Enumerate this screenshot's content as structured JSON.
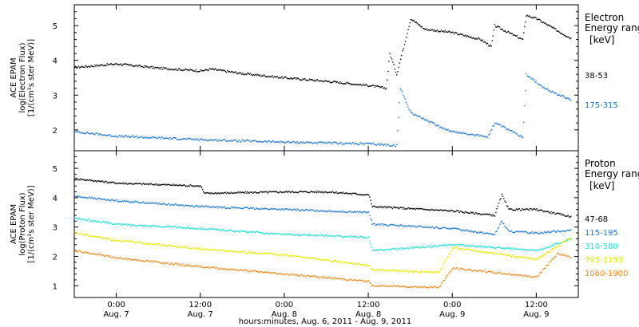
{
  "chart_data": {
    "type": "scatter",
    "xlabel": "hours:minutes, Aug.  6, 2011 - Aug.  9, 2011",
    "x_range": [
      "2011-08-06T18:00",
      "2011-08-09T18:00"
    ],
    "x_ticks": [
      {
        "time": "0:00",
        "date": "Aug. 7",
        "t": "2011-08-07T00:00"
      },
      {
        "time": "12:00",
        "date": "Aug. 7",
        "t": "2011-08-07T12:00"
      },
      {
        "time": "0:00",
        "date": "Aug. 8",
        "t": "2011-08-08T00:00"
      },
      {
        "time": "12:00",
        "date": "Aug. 8",
        "t": "2011-08-08T12:00"
      },
      {
        "time": "0:00",
        "date": "Aug. 9",
        "t": "2011-08-09T00:00"
      },
      {
        "time": "12:00",
        "date": "Aug. 9",
        "t": "2011-08-09T12:00"
      }
    ],
    "panels": [
      {
        "ylabel_line1": "ACE EPAM",
        "ylabel_line2": "log(Electron Flux)",
        "ylabel_line3": "[1/(cm²s ster MeV)]",
        "ylim": [
          1.4,
          5.6
        ],
        "y_ticks": [
          "2",
          "3",
          "4",
          "5"
        ],
        "legend_title_line1": "Electron",
        "legend_title_line2": "Energy range",
        "legend_unit": "[keV]",
        "series": [
          {
            "name": "38-53",
            "color": "#000000",
            "points": [
              [
                "2011-08-06T18:00",
                3.8
              ],
              [
                "2011-08-07T00:00",
                3.9
              ],
              [
                "2011-08-07T06:00",
                3.78
              ],
              [
                "2011-08-07T12:00",
                3.7
              ],
              [
                "2011-08-07T13:30",
                3.75
              ],
              [
                "2011-08-07T18:00",
                3.62
              ],
              [
                "2011-08-08T00:00",
                3.5
              ],
              [
                "2011-08-08T06:00",
                3.4
              ],
              [
                "2011-08-08T12:00",
                3.28
              ],
              [
                "2011-08-08T14:30",
                3.2
              ],
              [
                "2011-08-08T15:00",
                4.2
              ],
              [
                "2011-08-08T16:00",
                3.6
              ],
              [
                "2011-08-08T17:30",
                4.8
              ],
              [
                "2011-08-08T18:00",
                5.2
              ],
              [
                "2011-08-08T20:00",
                4.9
              ],
              [
                "2011-08-09T00:00",
                4.8
              ],
              [
                "2011-08-09T04:00",
                4.6
              ],
              [
                "2011-08-09T05:30",
                4.4
              ],
              [
                "2011-08-09T06:00",
                5.0
              ],
              [
                "2011-08-09T10:00",
                4.6
              ],
              [
                "2011-08-09T10:30",
                5.3
              ],
              [
                "2011-08-09T12:00",
                5.2
              ],
              [
                "2011-08-09T17:00",
                4.62
              ]
            ]
          },
          {
            "name": "175-315",
            "color": "#1f77d4",
            "points": [
              [
                "2011-08-06T18:00",
                1.95
              ],
              [
                "2011-08-07T00:00",
                1.82
              ],
              [
                "2011-08-07T12:00",
                1.72
              ],
              [
                "2011-08-08T00:00",
                1.65
              ],
              [
                "2011-08-08T12:00",
                1.6
              ],
              [
                "2011-08-08T16:00",
                1.55
              ],
              [
                "2011-08-08T16:30",
                3.2
              ],
              [
                "2011-08-08T18:00",
                2.5
              ],
              [
                "2011-08-08T22:00",
                2.1
              ],
              [
                "2011-08-09T00:00",
                1.95
              ],
              [
                "2011-08-09T05:00",
                1.8
              ],
              [
                "2011-08-09T06:00",
                2.2
              ],
              [
                "2011-08-09T10:00",
                1.8
              ],
              [
                "2011-08-09T10:30",
                3.6
              ],
              [
                "2011-08-09T13:00",
                3.2
              ],
              [
                "2011-08-09T17:00",
                2.85
              ]
            ]
          }
        ]
      },
      {
        "ylabel_line1": "ACE EPAM",
        "ylabel_line2": "log(Proton Flux)",
        "ylabel_line3": "[1/(cm²s ster MeV)]",
        "ylim": [
          0.6,
          5.6
        ],
        "y_ticks": [
          "1",
          "2",
          "3",
          "4",
          "5"
        ],
        "legend_title_line1": "Proton",
        "legend_title_line2": "Energy range",
        "legend_unit": "[keV]",
        "series": [
          {
            "name": "47-68",
            "color": "#000000",
            "points": [
              [
                "2011-08-06T18:00",
                4.65
              ],
              [
                "2011-08-07T00:00",
                4.5
              ],
              [
                "2011-08-07T12:00",
                4.4
              ],
              [
                "2011-08-07T12:30",
                4.15
              ],
              [
                "2011-08-08T00:00",
                4.2
              ],
              [
                "2011-08-08T06:00",
                4.2
              ],
              [
                "2011-08-08T12:00",
                4.1
              ],
              [
                "2011-08-08T12:30",
                3.7
              ],
              [
                "2011-08-09T00:00",
                3.55
              ],
              [
                "2011-08-09T06:00",
                3.4
              ],
              [
                "2011-08-09T07:00",
                4.1
              ],
              [
                "2011-08-09T08:00",
                3.6
              ],
              [
                "2011-08-09T12:00",
                3.6
              ],
              [
                "2011-08-09T17:00",
                3.35
              ]
            ]
          },
          {
            "name": "115-195",
            "color": "#1f77d4",
            "points": [
              [
                "2011-08-06T18:00",
                4.05
              ],
              [
                "2011-08-07T00:00",
                3.9
              ],
              [
                "2011-08-07T12:00",
                3.7
              ],
              [
                "2011-08-08T00:00",
                3.6
              ],
              [
                "2011-08-08T12:00",
                3.5
              ],
              [
                "2011-08-08T12:30",
                3.1
              ],
              [
                "2011-08-09T00:00",
                2.95
              ],
              [
                "2011-08-09T06:00",
                2.75
              ],
              [
                "2011-08-09T07:00",
                3.2
              ],
              [
                "2011-08-09T08:00",
                2.85
              ],
              [
                "2011-08-09T12:00",
                2.8
              ],
              [
                "2011-08-09T17:00",
                2.9
              ]
            ]
          },
          {
            "name": "310-580",
            "color": "#22e0d8",
            "points": [
              [
                "2011-08-06T18:00",
                3.3
              ],
              [
                "2011-08-07T00:00",
                3.1
              ],
              [
                "2011-08-07T12:00",
                2.95
              ],
              [
                "2011-08-08T00:00",
                2.75
              ],
              [
                "2011-08-08T12:00",
                2.65
              ],
              [
                "2011-08-08T12:30",
                2.2
              ],
              [
                "2011-08-09T00:00",
                2.4
              ],
              [
                "2011-08-09T06:00",
                2.3
              ],
              [
                "2011-08-09T12:00",
                2.2
              ],
              [
                "2011-08-09T17:00",
                2.6
              ]
            ]
          },
          {
            "name": "795-1193",
            "color": "#e8e800",
            "points": [
              [
                "2011-08-06T18:00",
                2.8
              ],
              [
                "2011-08-07T00:00",
                2.55
              ],
              [
                "2011-08-07T12:00",
                2.25
              ],
              [
                "2011-08-08T00:00",
                2.05
              ],
              [
                "2011-08-08T12:00",
                1.7
              ],
              [
                "2011-08-08T12:30",
                1.55
              ],
              [
                "2011-08-08T22:00",
                1.45
              ],
              [
                "2011-08-09T00:00",
                2.3
              ],
              [
                "2011-08-09T06:00",
                2.1
              ],
              [
                "2011-08-09T12:00",
                1.9
              ],
              [
                "2011-08-09T17:00",
                2.65
              ]
            ]
          },
          {
            "name": "1060-1900",
            "color": "#f08a1c",
            "points": [
              [
                "2011-08-06T18:00",
                2.2
              ],
              [
                "2011-08-07T00:00",
                1.95
              ],
              [
                "2011-08-07T12:00",
                1.65
              ],
              [
                "2011-08-08T00:00",
                1.4
              ],
              [
                "2011-08-08T12:00",
                1.15
              ],
              [
                "2011-08-08T12:30",
                1.0
              ],
              [
                "2011-08-08T22:00",
                0.95
              ],
              [
                "2011-08-09T00:00",
                1.6
              ],
              [
                "2011-08-09T06:00",
                1.45
              ],
              [
                "2011-08-09T12:00",
                1.3
              ],
              [
                "2011-08-09T15:00",
                2.1
              ],
              [
                "2011-08-09T17:00",
                1.95
              ]
            ]
          }
        ]
      }
    ]
  }
}
